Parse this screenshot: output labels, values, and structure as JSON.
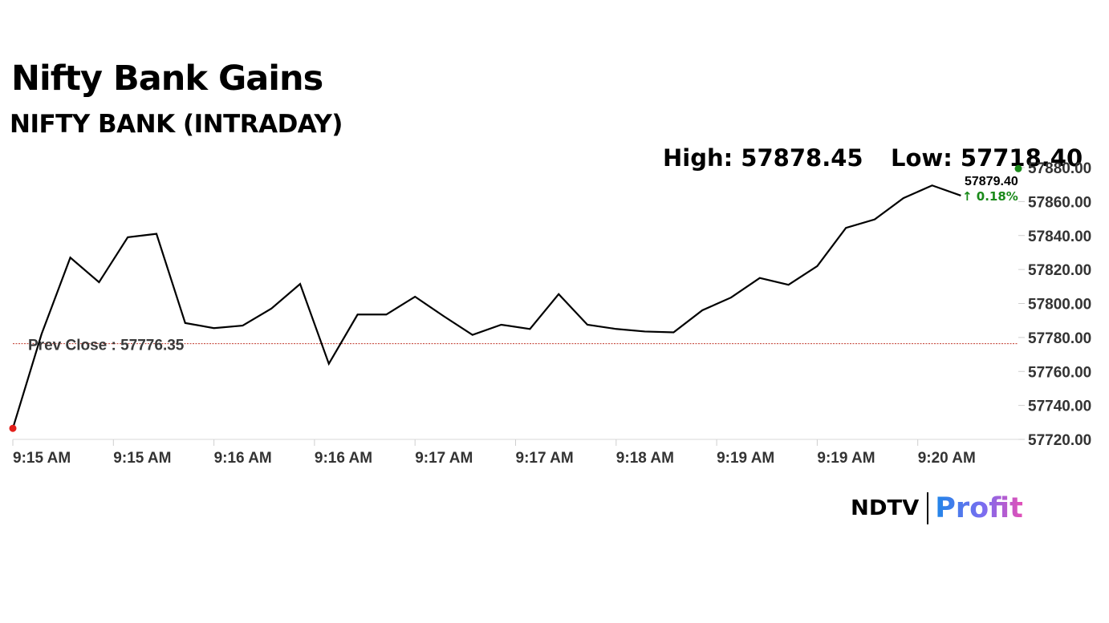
{
  "header": {
    "title": "Nifty Bank Gains",
    "subtitle": "NIFTY BANK (INTRADAY)"
  },
  "stats": {
    "high": "High: 57878.45",
    "low": "Low: 57718.40"
  },
  "last_price": {
    "value": "57879.40",
    "change": "↑ 0.18%"
  },
  "prev_close": {
    "label": "Prev Close : 57776.35",
    "value": 57776.35
  },
  "brand": {
    "name": "NDTV",
    "product": "Profit"
  },
  "colors": {
    "line": "#000000",
    "prev_close_line": "#c0392b",
    "start_dot": "#e3201b",
    "end_dot": "#1a8a1a",
    "change_text": "#1a8a1a",
    "axis_text": "#333333"
  },
  "chart_data": {
    "type": "line",
    "title": "NIFTY BANK (INTRADAY)",
    "xlabel": "",
    "ylabel": "",
    "ylim": [
      57720,
      57880
    ],
    "yticks": [
      57720,
      57740,
      57760,
      57780,
      57800,
      57820,
      57840,
      57860,
      57880
    ],
    "ytick_labels": [
      "57720.00",
      "57740.00",
      "57760.00",
      "57780.00",
      "57800.00",
      "57820.00",
      "57840.00",
      "57860.00",
      "57880.00"
    ],
    "xticks": [
      0,
      3.5,
      7,
      10.5,
      14,
      17.5,
      21,
      24.5,
      28,
      31.5
    ],
    "xtick_labels": [
      "9:15 AM",
      "9:15 AM",
      "9:16 AM",
      "9:16 AM",
      "9:17 AM",
      "9:17 AM",
      "9:18 AM",
      "9:19 AM",
      "9:19 AM",
      "9:20 AM"
    ],
    "xlim": [
      0,
      35
    ],
    "grid": false,
    "legend": "none",
    "series": [
      {
        "values": [
          57726.5,
          57782,
          57827,
          57812.5,
          57839,
          57841,
          57788.5,
          57785.5,
          57787,
          57797,
          57811.5,
          57764.5,
          57793.5,
          57793.5,
          57804,
          57792.5,
          57781.5,
          57787.5,
          57785,
          57805.5,
          57787.5,
          57785,
          57783.5,
          57783,
          57796,
          57803.5,
          57815,
          57811,
          57822,
          57844.5,
          57849.5,
          57862,
          57869.5,
          57863.5
        ]
      }
    ],
    "last_value": 57879.4,
    "change_percent": 0.18,
    "high": 57878.45,
    "low": 57718.4,
    "prev_close": 57776.35
  }
}
